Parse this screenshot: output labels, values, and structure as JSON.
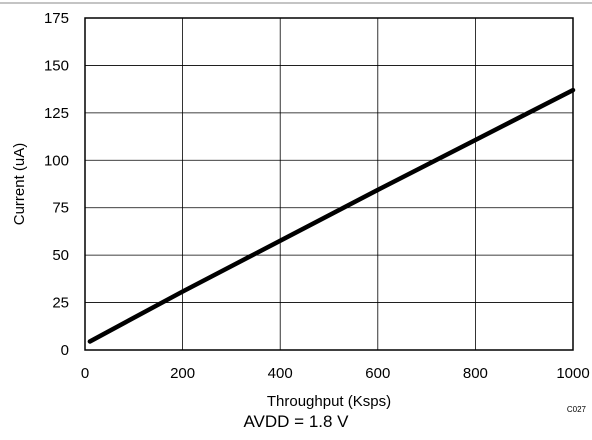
{
  "chart_data": {
    "type": "line",
    "title": "",
    "xlabel": "Throughput (Ksps)",
    "ylabel": "Current (uA)",
    "xlim": [
      0,
      1000
    ],
    "ylim": [
      0,
      175
    ],
    "x_ticks": [
      0,
      200,
      400,
      600,
      800,
      1000
    ],
    "y_ticks": [
      0,
      25,
      50,
      75,
      100,
      125,
      150,
      175
    ],
    "grid": true,
    "legend": "none",
    "series": [
      {
        "x": [
          10,
          200,
          400,
          600,
          800,
          1000
        ],
        "y": [
          4.5,
          30.8,
          57.6,
          84.4,
          110.7,
          137
        ],
        "color": "#000000"
      }
    ]
  },
  "figure_code": "C027",
  "caption": "AVDD = 1.8 V"
}
